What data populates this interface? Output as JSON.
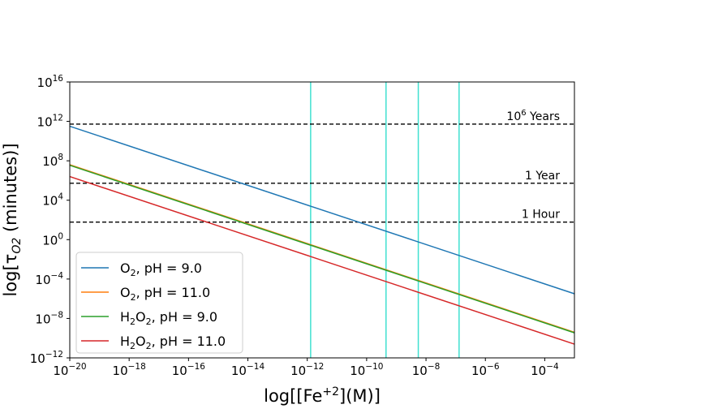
{
  "chart_data": {
    "type": "line",
    "xscale": "log",
    "yscale": "log",
    "xlabel": "log[[Fe+2](M)]",
    "ylabel": "log[τO2 (minutes)]",
    "xlim": [
      1e-20,
      0.001
    ],
    "ylim": [
      1e-12,
      1e+16
    ],
    "x_ticks": [
      {
        "base": "10",
        "exp": "−20",
        "value": 1e-20
      },
      {
        "base": "10",
        "exp": "−18",
        "value": 1e-18
      },
      {
        "base": "10",
        "exp": "−16",
        "value": 1e-16
      },
      {
        "base": "10",
        "exp": "−14",
        "value": 1e-14
      },
      {
        "base": "10",
        "exp": "−12",
        "value": 1e-12
      },
      {
        "base": "10",
        "exp": "−10",
        "value": 1e-10
      },
      {
        "base": "10",
        "exp": "−8",
        "value": 1e-08
      },
      {
        "base": "10",
        "exp": "−6",
        "value": 1e-06
      },
      {
        "base": "10",
        "exp": "−4",
        "value": 0.0001
      }
    ],
    "y_ticks": [
      {
        "base": "10",
        "exp": "−12",
        "value": 1e-12
      },
      {
        "base": "10",
        "exp": "−8",
        "value": 1e-08
      },
      {
        "base": "10",
        "exp": "−4",
        "value": 0.0001
      },
      {
        "base": "10",
        "exp": "0",
        "value": 1
      },
      {
        "base": "10",
        "exp": "4",
        "value": 10000.0
      },
      {
        "base": "10",
        "exp": "8",
        "value": 100000000.0
      },
      {
        "base": "10",
        "exp": "12",
        "value": 1000000000000.0
      },
      {
        "base": "10",
        "exp": "16",
        "value": 1e+16
      }
    ],
    "series": [
      {
        "name": "O2, pH = 9.0",
        "color": "#1f77b4",
        "x": [
          1e-20,
          0.001
        ],
        "y": [
          320000000000.0,
          3.2e-06
        ]
      },
      {
        "name": "O2, pH = 11.0",
        "color": "#ff7f0e",
        "x": [
          1e-20,
          0.001
        ],
        "y": [
          40000000.0,
          4e-10
        ]
      },
      {
        "name": "H2O2, pH = 9.0",
        "color": "#2ca02c",
        "x": [
          1e-20,
          0.001
        ],
        "y": [
          35000000.0,
          3.5e-10
        ]
      },
      {
        "name": "H2O2, pH = 11.0",
        "color": "#d62728",
        "x": [
          1e-20,
          0.001
        ],
        "y": [
          2500000.0,
          2.5e-11
        ]
      }
    ],
    "horizontal_lines": [
      {
        "label": "Years",
        "label_prefix": "10",
        "label_exp": "6",
        "y": 526000000000.0,
        "style": "dashed",
        "color": "#000000"
      },
      {
        "label": "1 Year",
        "y": 525600,
        "style": "dashed",
        "color": "#000000"
      },
      {
        "label": "1 Hour",
        "y": 60,
        "style": "dashed",
        "color": "#000000"
      }
    ],
    "vertical_lines": {
      "color": "#40e0d0",
      "x": [
        1.3e-12,
        4.5e-10,
        5.5e-09,
        1.3e-07
      ]
    },
    "legend": {
      "position": "lower-left",
      "items": [
        {
          "base": "O",
          "sub": "2",
          "rest": ", pH = 9.0"
        },
        {
          "base": "O",
          "sub": "2",
          "rest": ", pH = 11.0"
        },
        {
          "pre": "H",
          "pre_sub": "2",
          "base": "O",
          "sub": "2",
          "rest": ", pH = 9.0"
        },
        {
          "pre": "H",
          "pre_sub": "2",
          "base": "O",
          "sub": "2",
          "rest": ", pH = 11.0"
        }
      ]
    }
  }
}
